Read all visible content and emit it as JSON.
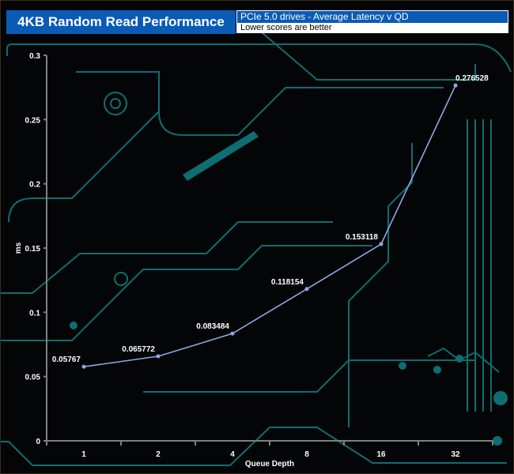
{
  "header": {
    "title": "4KB Random Read Performance",
    "subtitle": "PCIe 5.0 drives -  Average Latency v QD",
    "note": "Lower scores are better"
  },
  "colors": {
    "header_bg": "#0a5bb5",
    "line": "#8fa8e8",
    "axis": "#808080",
    "circuit": "#0e6e72"
  },
  "chart_data": {
    "type": "line",
    "title": "4KB Random Read Performance",
    "xlabel": "Queue Depth",
    "ylabel": "ms",
    "categories": [
      "1",
      "2",
      "4",
      "8",
      "16",
      "32"
    ],
    "values": [
      0.05767,
      0.065772,
      0.083484,
      0.118154,
      0.153118,
      0.276528
    ],
    "data_labels": [
      "0.05767",
      "0.065772",
      "0.083484",
      "0.118154",
      "0.153118",
      "0.276528"
    ],
    "ylim": [
      0,
      0.3
    ],
    "yticks": [
      "0",
      "0.05",
      "0.1",
      "0.15",
      "0.2",
      "0.25",
      "0.3"
    ],
    "grid": false,
    "legend": "none"
  }
}
